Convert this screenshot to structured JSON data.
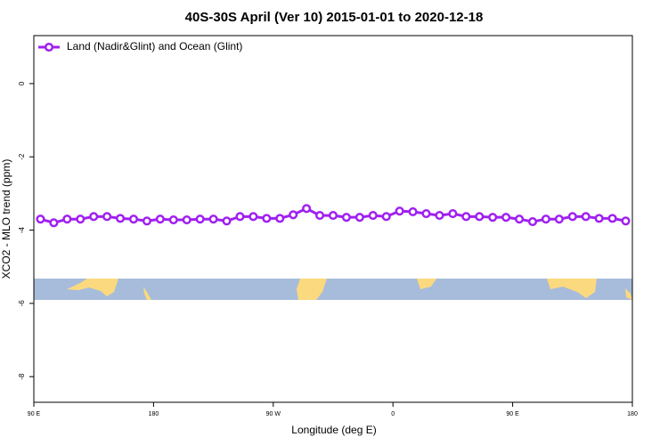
{
  "chart_data": {
    "type": "line",
    "title": "40S-30S April (Ver 10)   2015-01-01 to 2020-12-18",
    "xlabel": "Longitude (deg E)",
    "ylabel": "XCO2 - MLO trend (ppm)",
    "x": [
      95,
      105,
      115,
      125,
      135,
      145,
      155,
      165,
      175,
      185,
      195,
      205,
      215,
      225,
      235,
      245,
      255,
      265,
      275,
      285,
      295,
      305,
      315,
      325,
      335,
      345,
      355,
      365,
      375,
      385,
      395,
      405,
      415,
      425,
      435,
      445,
      455,
      465,
      475,
      485,
      495,
      505,
      515,
      525,
      535
    ],
    "series": [
      {
        "name": "Land (Nadir&Glint) and Ocean (Glint)",
        "color": "#a020f0",
        "values": [
          -3.7,
          -3.8,
          -3.7,
          -3.7,
          -3.63,
          -3.63,
          -3.68,
          -3.7,
          -3.75,
          -3.7,
          -3.72,
          -3.72,
          -3.7,
          -3.7,
          -3.75,
          -3.63,
          -3.63,
          -3.68,
          -3.68,
          -3.58,
          -3.41,
          -3.6,
          -3.6,
          -3.65,
          -3.65,
          -3.6,
          -3.63,
          -3.48,
          -3.5,
          -3.55,
          -3.6,
          -3.55,
          -3.63,
          -3.63,
          -3.65,
          -3.65,
          -3.7,
          -3.77,
          -3.7,
          -3.7,
          -3.63,
          -3.63,
          -3.68,
          -3.68,
          -3.75
        ]
      }
    ],
    "xlim": [
      90,
      540
    ],
    "xticks": [
      {
        "value": 90,
        "label": "90 E"
      },
      {
        "value": 180,
        "label": "180"
      },
      {
        "value": 270,
        "label": "90 W"
      },
      {
        "value": 360,
        "label": "0"
      },
      {
        "value": 450,
        "label": "90 E"
      },
      {
        "value": 540,
        "label": "180"
      }
    ],
    "ylim": [
      -8.7,
      1.31
    ],
    "yticks": [
      0,
      -2,
      -4,
      -6,
      -8
    ],
    "legend": "top-left"
  }
}
